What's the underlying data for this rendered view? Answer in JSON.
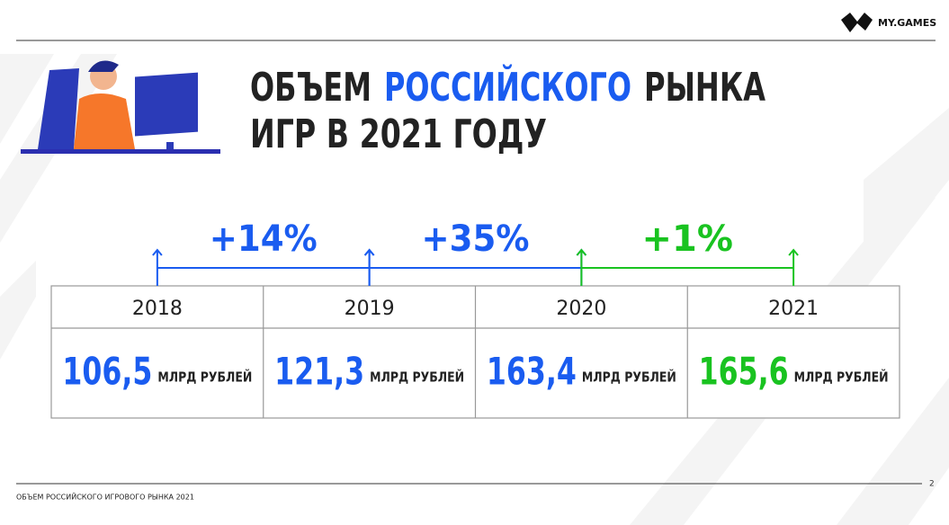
{
  "header": {
    "logo": "MY.GAMES",
    "title": {
      "before": "ОБЪЕМ",
      "highlight": "РОССИЙСКОГО",
      "after": "РЫНКА",
      "line2": "ИГР В 2021 ГОДУ"
    }
  },
  "growth": [
    {
      "label": "+14%",
      "color": "#1a5cf0"
    },
    {
      "label": "+35%",
      "color": "#1a5cf0"
    },
    {
      "label": "+1%",
      "color": "#19c320"
    }
  ],
  "table": {
    "columns": [
      {
        "year": "2018",
        "value": "106,5",
        "unit": "МЛРД РУБЛЕЙ",
        "color": "#1a5cf0"
      },
      {
        "year": "2019",
        "value": "121,3",
        "unit": "МЛРД РУБЛЕЙ",
        "color": "#1a5cf0"
      },
      {
        "year": "2020",
        "value": "163,4",
        "unit": "МЛРД РУБЛЕЙ",
        "color": "#1a5cf0"
      },
      {
        "year": "2021",
        "value": "165,6",
        "unit": "МЛРД РУБЛЕЙ",
        "color": "#19c320"
      }
    ]
  },
  "footer": {
    "caption": "ОБЪЕМ РОССИЙСКОГО ИГРОВОГО РЫНКА 2021",
    "page": "2"
  }
}
